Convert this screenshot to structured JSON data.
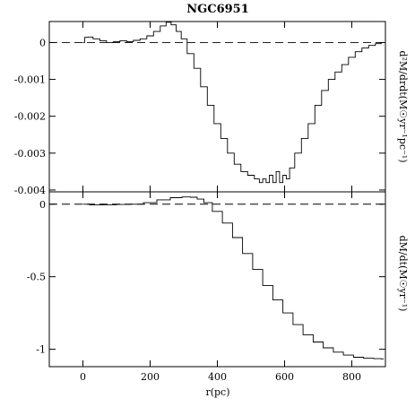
{
  "chart_data": {
    "type": "line",
    "title": "NGC6951",
    "xlabel": "r(pc)",
    "xlim": [
      -100,
      900
    ],
    "x_ticks": [
      0,
      200,
      400,
      600,
      800
    ],
    "x_tick_labels": [
      "0",
      "200",
      "400",
      "600",
      "800"
    ],
    "panels": [
      {
        "id": "top",
        "ylabel": "d²M/drdt(M☉yr⁻¹pc⁻¹)",
        "ylim": [
          -0.00405,
          0.00057
        ],
        "y_ticks": [
          0,
          -0.001,
          -0.002,
          -0.003,
          -0.004
        ],
        "y_tick_labels": [
          "0",
          "-0.001",
          "-0.002",
          "-0.003",
          "-0.004"
        ],
        "reference_line": 0,
        "series": [
          {
            "x": [
              0,
              10,
              20,
              40,
              60,
              80,
              100,
              120,
              140,
              160,
              180,
              200,
              220,
              240,
              255,
              270,
              285,
              300,
              320,
              340,
              360,
              380,
              400,
              420,
              440,
              460,
              480,
              500,
              520,
              530,
              540,
              550,
              560,
              570,
              580,
              590,
              600,
              610,
              620,
              640,
              660,
              680,
              700,
              720,
              740,
              760,
              780,
              800,
              820,
              840,
              860,
              880,
              895
            ],
            "y": [
              0.0,
              0.00014,
              0.00015,
              0.0001,
              5e-05,
              0.0,
              2e-05,
              5e-05,
              2e-05,
              6e-05,
              0.0001,
              0.00018,
              0.0003,
              0.00045,
              0.00055,
              0.00048,
              0.0003,
              0.0001,
              -0.0003,
              -0.0007,
              -0.0012,
              -0.0017,
              -0.0022,
              -0.0026,
              -0.003,
              -0.0033,
              -0.0035,
              -0.0036,
              -0.0037,
              -0.0038,
              -0.0037,
              -0.0038,
              -0.0036,
              -0.0038,
              -0.0035,
              -0.0038,
              -0.0036,
              -0.0037,
              -0.0034,
              -0.003,
              -0.0026,
              -0.0022,
              -0.0017,
              -0.0013,
              -0.001,
              -0.0008,
              -0.0006,
              -0.0004,
              -0.00025,
              -0.00015,
              -8e-05,
              -3e-05,
              0.0
            ]
          }
        ]
      },
      {
        "id": "bottom",
        "ylabel": "dM/dt(M☉yr⁻¹)",
        "ylim": [
          -1.12,
          0.085
        ],
        "y_ticks": [
          0,
          -0.5,
          -1
        ],
        "y_tick_labels": [
          "0",
          "-0.5",
          "-1"
        ],
        "reference_line": 0,
        "series": [
          {
            "x": [
              0,
              40,
              80,
              120,
              160,
              200,
              240,
              280,
              310,
              330,
              350,
              370,
              400,
              430,
              460,
              490,
              520,
              550,
              580,
              610,
              640,
              670,
              700,
              730,
              760,
              790,
              820,
              850,
              880,
              895
            ],
            "y": [
              0.0,
              -0.005,
              -0.004,
              -0.002,
              0.0,
              0.01,
              0.03,
              0.045,
              0.05,
              0.048,
              0.035,
              0.01,
              -0.05,
              -0.13,
              -0.23,
              -0.34,
              -0.45,
              -0.56,
              -0.66,
              -0.75,
              -0.83,
              -0.9,
              -0.95,
              -0.99,
              -1.02,
              -1.04,
              -1.055,
              -1.062,
              -1.065,
              -1.066
            ]
          }
        ]
      }
    ]
  }
}
